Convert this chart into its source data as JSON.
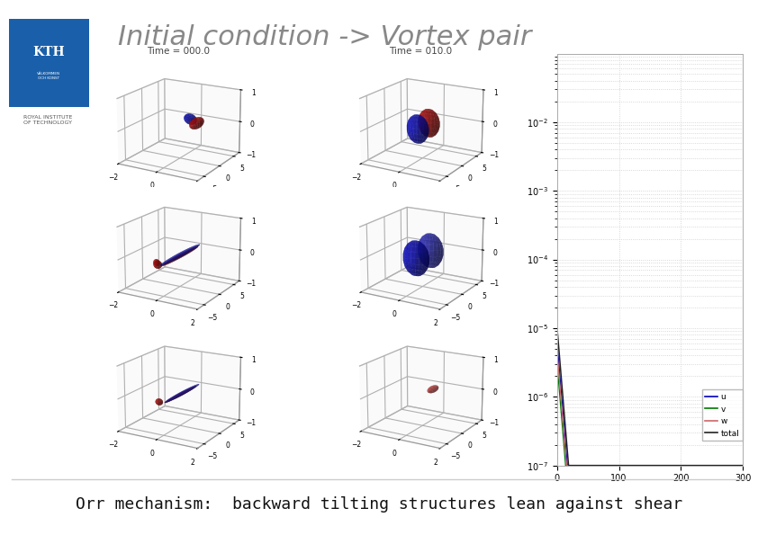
{
  "title": "Initial condition -> Vortex pair",
  "subtitle": "Orr mechanism:  backward tilting structures lean against shear",
  "title_color": "#888888",
  "bg_color": "#ffffff",
  "title_fontsize": 22,
  "subtitle_fontsize": 13,
  "time_label_left": "Time = 000.0",
  "time_label_right": "Time = 010.0",
  "line_colors": {
    "u": "#0000bb",
    "v": "#007700",
    "w": "#cc6666",
    "total": "#222222"
  },
  "ylim": [
    1e-07,
    0.1
  ],
  "xlim": [
    0,
    300
  ],
  "yticks": [
    -7,
    -6,
    -5,
    -4,
    -3,
    -2
  ],
  "xticks": [
    0,
    100,
    200,
    300
  ],
  "logo_color": "#1a5faa",
  "pane_color": "#e8e8e8",
  "grid_color": "#bbbbbb",
  "box_edge_color": "#999999"
}
